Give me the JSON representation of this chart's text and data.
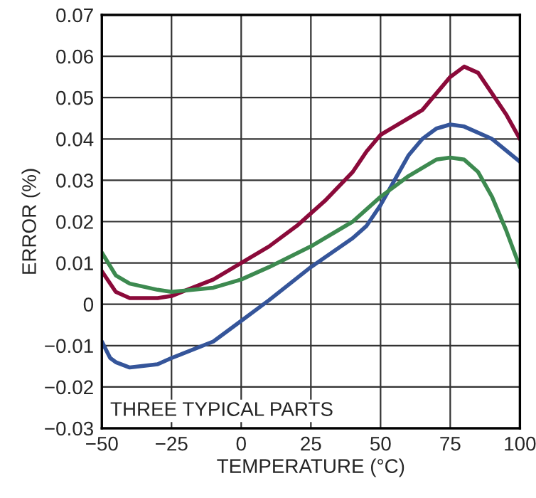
{
  "chart_data": {
    "type": "line",
    "xlabel": "TEMPERATURE (°C)",
    "ylabel": "ERROR (%)",
    "xlim": [
      -50,
      100
    ],
    "xticks": [
      {
        "value": -50,
        "label": "−50"
      },
      {
        "value": -25,
        "label": "−25"
      },
      0,
      25,
      50,
      75,
      100
    ],
    "ylim": [
      -0.03,
      0.07
    ],
    "yticks": [
      {
        "value": -0.03,
        "label": "−0.03"
      },
      {
        "value": -0.02,
        "label": "−0.02"
      },
      {
        "value": -0.01,
        "label": "−0.01"
      },
      0,
      0.01,
      0.02,
      0.03,
      0.04,
      0.05,
      0.06,
      0.07
    ],
    "grid": true,
    "line_style": "solid",
    "annotations": [
      "THREE TYPICAL PARTS"
    ],
    "series": [
      {
        "color": "#8b0a3a",
        "x": [
          -50,
          -45,
          -40,
          -30,
          -25,
          -10,
          0,
          10,
          20,
          30,
          40,
          45,
          50,
          55,
          60,
          65,
          70,
          75,
          80,
          85,
          90,
          95,
          100
        ],
        "values": [
          0.008,
          0.003,
          0.0015,
          0.0015,
          0.002,
          0.006,
          0.01,
          0.014,
          0.019,
          0.025,
          0.032,
          0.037,
          0.041,
          0.043,
          0.045,
          0.047,
          0.051,
          0.055,
          0.0575,
          0.056,
          0.051,
          0.046,
          0.04
        ]
      },
      {
        "color": "#35559a",
        "x": [
          -50,
          -47,
          -45,
          -40,
          -30,
          -25,
          -10,
          0,
          10,
          25,
          40,
          45,
          50,
          55,
          60,
          65,
          70,
          75,
          80,
          90,
          100
        ],
        "values": [
          -0.009,
          -0.013,
          -0.014,
          -0.0153,
          -0.0145,
          -0.013,
          -0.009,
          -0.004,
          0.001,
          0.009,
          0.016,
          0.019,
          0.024,
          0.03,
          0.036,
          0.04,
          0.0425,
          0.0435,
          0.043,
          0.04,
          0.0345
        ]
      },
      {
        "color": "#3d8a50",
        "x": [
          -50,
          -45,
          -40,
          -30,
          -25,
          -10,
          0,
          10,
          25,
          40,
          50,
          60,
          70,
          75,
          80,
          85,
          90,
          95,
          100
        ],
        "values": [
          0.0125,
          0.007,
          0.005,
          0.0035,
          0.003,
          0.004,
          0.006,
          0.009,
          0.014,
          0.02,
          0.026,
          0.031,
          0.035,
          0.0355,
          0.035,
          0.032,
          0.026,
          0.018,
          0.009
        ]
      }
    ]
  }
}
